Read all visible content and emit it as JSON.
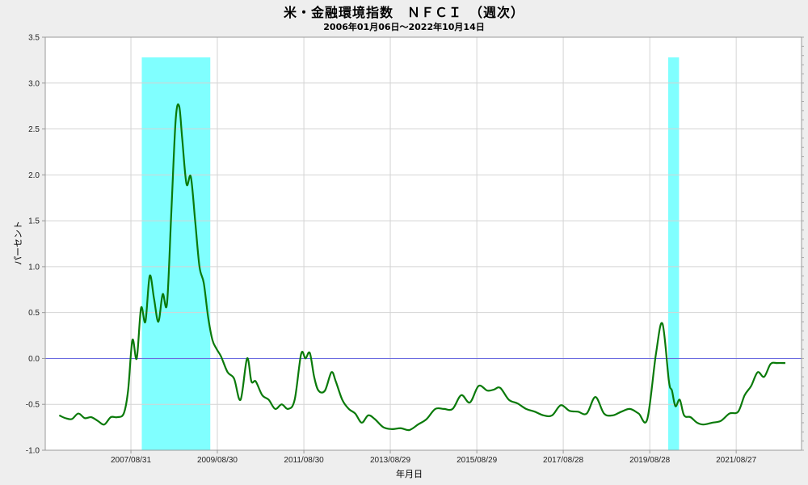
{
  "title": "米・金融環境指数　ＮＦＣＩ　（週次）",
  "subtitle": "2006年01月06日～2022年10月14日",
  "chart_data": {
    "type": "line",
    "title": "米・金融環境指数　ＮＦＣＩ　（週次）",
    "subtitle": "2006年01月06日～2022年10月14日",
    "xlabel": "年月日",
    "ylabel": "パーセント",
    "ylim": [
      -1.0,
      3.5
    ],
    "yticks": [
      "3.5",
      "3.0",
      "2.5",
      "2.0",
      "1.5",
      "1.0",
      "0.5",
      "0.0",
      "-0.5",
      "-1.0"
    ],
    "xticks": [
      "2007/08/31",
      "2009/08/30",
      "2011/08/30",
      "2013/08/29",
      "2015/08/29",
      "2017/08/28",
      "2019/08/28",
      "2021/08/27"
    ],
    "date_range": [
      "2006/01/06",
      "2022/10/14"
    ],
    "grid": true,
    "zero_line_color": "#6b6be0",
    "line_color": "#0a7a0a",
    "recession_color": "#80ffff",
    "recession_bands": [
      {
        "start": "2007/12",
        "end": "2009/06"
      },
      {
        "start": "2020/02",
        "end": "2020/04"
      }
    ],
    "series": [
      {
        "name": "NFCI",
        "x": [
          2006.01,
          2006.15,
          2006.3,
          2006.45,
          2006.6,
          2006.75,
          2006.9,
          2007.05,
          2007.2,
          2007.35,
          2007.5,
          2007.6,
          2007.7,
          2007.8,
          2007.9,
          2008.0,
          2008.1,
          2008.2,
          2008.3,
          2008.4,
          2008.5,
          2008.6,
          2008.7,
          2008.78,
          2008.85,
          2008.95,
          2009.05,
          2009.15,
          2009.25,
          2009.35,
          2009.45,
          2009.55,
          2009.65,
          2009.75,
          2009.9,
          2010.05,
          2010.2,
          2010.35,
          2010.45,
          2010.55,
          2010.7,
          2010.85,
          2011.0,
          2011.15,
          2011.3,
          2011.45,
          2011.6,
          2011.7,
          2011.8,
          2011.9,
          2012.0,
          2012.15,
          2012.3,
          2012.4,
          2012.55,
          2012.7,
          2012.85,
          2013.0,
          2013.15,
          2013.3,
          2013.5,
          2013.7,
          2013.9,
          2014.1,
          2014.3,
          2014.5,
          2014.7,
          2014.9,
          2015.1,
          2015.3,
          2015.5,
          2015.7,
          2015.9,
          2016.05,
          2016.2,
          2016.4,
          2016.6,
          2016.8,
          2017.0,
          2017.2,
          2017.4,
          2017.6,
          2017.8,
          2018.0,
          2018.2,
          2018.4,
          2018.6,
          2018.8,
          2019.0,
          2019.2,
          2019.4,
          2019.6,
          2019.8,
          2019.95,
          2020.1,
          2020.17,
          2020.25,
          2020.35,
          2020.45,
          2020.6,
          2020.75,
          2020.9,
          2021.1,
          2021.3,
          2021.5,
          2021.7,
          2021.85,
          2022.0,
          2022.15,
          2022.3,
          2022.45,
          2022.6,
          2022.79
        ],
        "values": [
          -0.62,
          -0.65,
          -0.66,
          -0.6,
          -0.65,
          -0.64,
          -0.68,
          -0.72,
          -0.64,
          -0.64,
          -0.6,
          -0.35,
          0.2,
          0.0,
          0.55,
          0.4,
          0.9,
          0.65,
          0.4,
          0.7,
          0.6,
          1.6,
          2.6,
          2.75,
          2.4,
          1.9,
          1.98,
          1.5,
          1.0,
          0.82,
          0.45,
          0.2,
          0.1,
          0.02,
          -0.15,
          -0.22,
          -0.45,
          0.0,
          -0.25,
          -0.25,
          -0.4,
          -0.45,
          -0.55,
          -0.5,
          -0.55,
          -0.45,
          0.05,
          0.0,
          0.06,
          -0.2,
          -0.35,
          -0.35,
          -0.15,
          -0.25,
          -0.45,
          -0.55,
          -0.6,
          -0.7,
          -0.62,
          -0.66,
          -0.75,
          -0.77,
          -0.76,
          -0.78,
          -0.72,
          -0.66,
          -0.55,
          -0.55,
          -0.55,
          -0.4,
          -0.48,
          -0.3,
          -0.35,
          -0.34,
          -0.32,
          -0.45,
          -0.49,
          -0.55,
          -0.58,
          -0.62,
          -0.62,
          -0.51,
          -0.57,
          -0.58,
          -0.6,
          -0.42,
          -0.6,
          -0.62,
          -0.58,
          -0.55,
          -0.6,
          -0.66,
          0.05,
          0.38,
          -0.25,
          -0.35,
          -0.52,
          -0.45,
          -0.62,
          -0.64,
          -0.7,
          -0.72,
          -0.7,
          -0.68,
          -0.6,
          -0.58,
          -0.4,
          -0.3,
          -0.15,
          -0.2,
          -0.06,
          -0.05,
          -0.05
        ]
      }
    ]
  }
}
